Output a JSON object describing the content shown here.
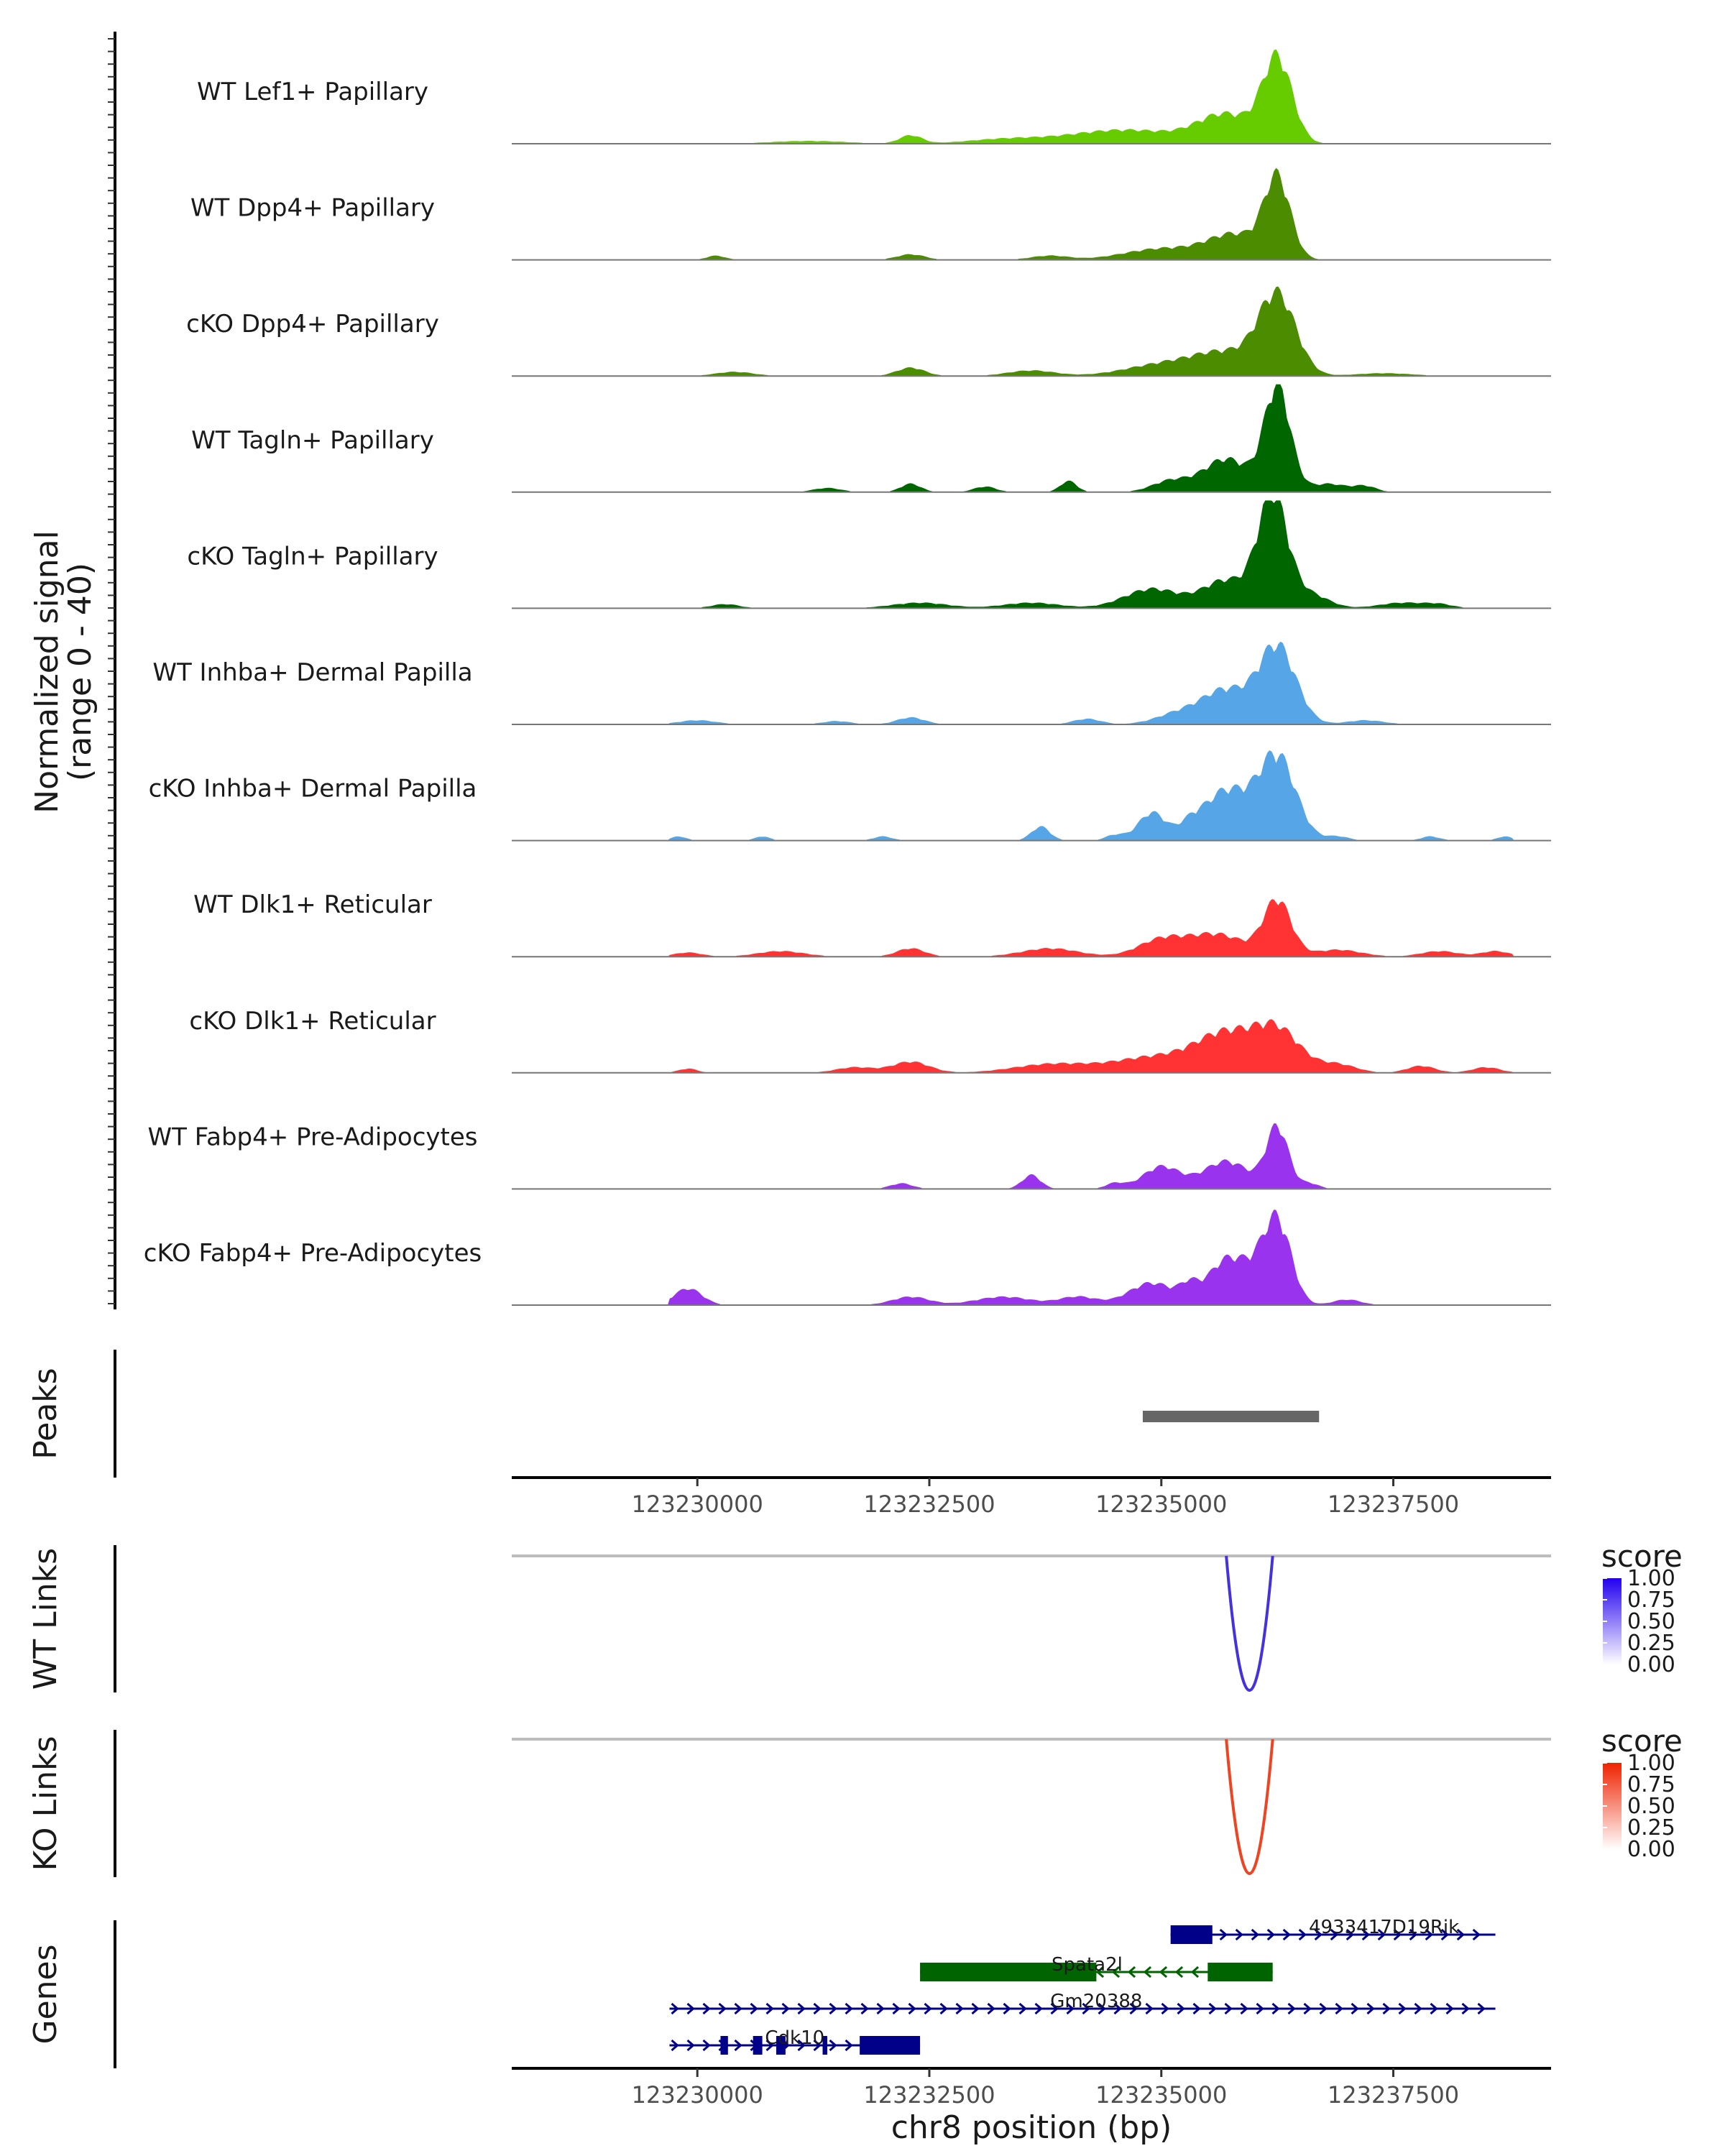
{
  "chart_data": {
    "type": "area",
    "region": {
      "chrom": "chr8",
      "start": 123228000,
      "end": 123239200
    },
    "xlabel": "chr8 position (bp)",
    "x_ticks": [
      123230000,
      123232500,
      123235000,
      123237500
    ],
    "x_tick_labels": [
      "123230000",
      "123232500",
      "123235000",
      "123237500"
    ],
    "coverage": {
      "ylabel_line1": "Normalized signal",
      "ylabel_line2": "(range 0 - 40)",
      "ylim": [
        0,
        40
      ],
      "tracks": [
        {
          "name": "WT Lef1+ Papillary",
          "color": "#66cc00",
          "peaks": [
            [
              123236250,
              30,
              160
            ],
            [
              123235700,
              10,
              300
            ],
            [
              123234600,
              5,
              600
            ],
            [
              123232300,
              3,
              120
            ],
            [
              123231200,
              1,
              400
            ],
            [
              123233300,
              1.5,
              400
            ]
          ]
        },
        {
          "name": "WT Dpp4+ Papillary",
          "color": "#4c8c00",
          "peaks": [
            [
              123236250,
              28,
              140
            ],
            [
              123235800,
              9,
              300
            ],
            [
              123235000,
              4,
              400
            ],
            [
              123230200,
              1.5,
              100
            ],
            [
              123232300,
              2,
              150
            ],
            [
              123233800,
              1.5,
              200
            ]
          ]
        },
        {
          "name": "cKO Dpp4+ Papillary",
          "color": "#4c8c00",
          "peaks": [
            [
              123236250,
              28,
              200
            ],
            [
              123235700,
              8,
              350
            ],
            [
              123235000,
              4,
              400
            ],
            [
              123232300,
              3,
              150
            ],
            [
              123230400,
              1.5,
              200
            ],
            [
              123233600,
              2,
              250
            ],
            [
              123237400,
              1,
              300
            ]
          ]
        },
        {
          "name": "WT Tagln+ Papillary",
          "color": "#006600",
          "peaks": [
            [
              123236250,
              38,
              140
            ],
            [
              123235700,
              12,
              250
            ],
            [
              123235100,
              4,
              200
            ],
            [
              123234000,
              4,
              90
            ],
            [
              123232300,
              3,
              110
            ],
            [
              123233100,
              2,
              120
            ],
            [
              123236800,
              3,
              200
            ],
            [
              123237200,
              2,
              120
            ],
            [
              123231400,
              1.5,
              150
            ]
          ]
        },
        {
          "name": "cKO Tagln+ Papillary",
          "color": "#006600",
          "peaks": [
            [
              123236200,
              40,
              160
            ],
            [
              123235700,
              10,
              250
            ],
            [
              123234900,
              7,
              300
            ],
            [
              123236600,
              5,
              200
            ],
            [
              123232400,
              2,
              300
            ],
            [
              123233600,
              2,
              300
            ],
            [
              123230300,
              1.5,
              150
            ],
            [
              123237600,
              2,
              250
            ],
            [
              123238000,
              1.2,
              150
            ]
          ]
        },
        {
          "name": "WT Inhba+ Dermal Papilla",
          "color": "#56a5e6",
          "peaks": [
            [
              123236250,
              28,
              200
            ],
            [
              123235700,
              12,
              250
            ],
            [
              123235200,
              4,
              250
            ],
            [
              123234200,
              2,
              150
            ],
            [
              123232300,
              2.5,
              150
            ],
            [
              123230000,
              1.5,
              200
            ],
            [
              123231500,
              1.2,
              150
            ],
            [
              123237200,
              1.5,
              200
            ]
          ]
        },
        {
          "name": "cKO Inhba+ Dermal Papilla",
          "color": "#56a5e6",
          "peaks": [
            [
              123236250,
              30,
              200
            ],
            [
              123235700,
              18,
              250
            ],
            [
              123234900,
              10,
              150
            ],
            [
              123233700,
              5,
              100
            ],
            [
              123235300,
              4,
              120
            ],
            [
              123229800,
              1.5,
              80
            ],
            [
              123230700,
              1.5,
              80
            ],
            [
              123232000,
              1.5,
              100
            ],
            [
              123234500,
              2,
              100
            ],
            [
              123236900,
              1.5,
              120
            ],
            [
              123237900,
              1.5,
              100
            ],
            [
              123238700,
              1.5,
              80
            ]
          ]
        },
        {
          "name": "WT Dlk1+ Reticular",
          "color": "#ff3333",
          "peaks": [
            [
              123236250,
              20,
              150
            ],
            [
              123235600,
              8,
              300
            ],
            [
              123235000,
              6,
              250
            ],
            [
              123232300,
              3,
              150
            ],
            [
              123233800,
              3,
              300
            ],
            [
              123229900,
              1.5,
              150
            ],
            [
              123230900,
              2,
              250
            ],
            [
              123236900,
              2.5,
              250
            ],
            [
              123238000,
              2,
              200
            ],
            [
              123238600,
              2,
              150
            ]
          ]
        },
        {
          "name": "cKO Dlk1+ Reticular",
          "color": "#ff3333",
          "peaks": [
            [
              123236250,
              15,
              250
            ],
            [
              123235700,
              12,
              300
            ],
            [
              123235000,
              6,
              500
            ],
            [
              123232300,
              4,
              200
            ],
            [
              123231700,
              2,
              200
            ],
            [
              123233800,
              3,
              400
            ],
            [
              123229900,
              1.5,
              100
            ],
            [
              123236900,
              3,
              200
            ],
            [
              123237800,
              2.5,
              150
            ],
            [
              123238500,
              2,
              150
            ]
          ]
        },
        {
          "name": "WT Fabp4+ Pre-Adipocytes",
          "color": "#9933ee",
          "peaks": [
            [
              123236250,
              22,
              120
            ],
            [
              123235700,
              10,
              250
            ],
            [
              123235000,
              8,
              200
            ],
            [
              123233600,
              5,
              100
            ],
            [
              123232200,
              2,
              120
            ],
            [
              123234500,
              2,
              100
            ],
            [
              123236600,
              2,
              100
            ]
          ]
        },
        {
          "name": "cKO Fabp4+ Pre-Adipocytes",
          "color": "#9933ee",
          "peaks": [
            [
              123236250,
              30,
              150
            ],
            [
              123235700,
              16,
              200
            ],
            [
              123234900,
              8,
              250
            ],
            [
              123235300,
              5,
              100
            ],
            [
              123236000,
              7,
              150
            ],
            [
              123229900,
              6,
              150
            ],
            [
              123232300,
              3,
              200
            ],
            [
              123233300,
              3,
              300
            ],
            [
              123234100,
              3,
              200
            ],
            [
              123237000,
              2,
              150
            ]
          ]
        }
      ]
    },
    "peaks_panel": {
      "label": "Peaks",
      "intervals": [
        [
          123234800,
          123236700
        ]
      ],
      "color": "#666666"
    },
    "links": [
      {
        "label": "WT Links",
        "color": "#4433dd",
        "from": 123235700,
        "to": 123236200,
        "score": 1.0,
        "legend": {
          "title": "score",
          "ticks": [
            "1.00",
            "0.75",
            "0.50",
            "0.25",
            "0.00"
          ],
          "low_color": "#ffffff",
          "high_color": "#2200ee"
        }
      },
      {
        "label": "KO Links",
        "color": "#ee4422",
        "from": 123235700,
        "to": 123236200,
        "score": 1.0,
        "legend": {
          "title": "score",
          "ticks": [
            "1.00",
            "0.75",
            "0.50",
            "0.25",
            "0.00"
          ],
          "low_color": "#ffffff",
          "high_color": "#ee2200"
        }
      }
    ],
    "genes": {
      "label": "Genes",
      "list": [
        {
          "name": "4933417D19Rik",
          "strand": "+",
          "color": "#000088",
          "start": 123235100,
          "end": 123238600,
          "exons": [
            [
              123235100,
              123235550
            ]
          ],
          "label_at": 123237400
        },
        {
          "name": "Spata2l",
          "strand": "-",
          "color": "#006400",
          "start": 123232400,
          "end": 123236200,
          "exons": [
            [
              123232400,
              123234300
            ],
            [
              123235500,
              123236200
            ]
          ],
          "label_at": 123234200
        },
        {
          "name": "Gm20388",
          "strand": "+",
          "color": "#000088",
          "start": 123229700,
          "end": 123238600,
          "exons": [],
          "label_at": 123234300
        },
        {
          "name": "Cdk10",
          "strand": "+",
          "color": "#000088",
          "start": 123229700,
          "end": 123232400,
          "exons": [
            [
              123230250,
              123230330
            ],
            [
              123230600,
              123230700
            ],
            [
              123230850,
              123230950
            ],
            [
              123231350,
              123231400
            ],
            [
              123231750,
              123232400
            ]
          ],
          "label_at": 123231050
        }
      ]
    }
  }
}
